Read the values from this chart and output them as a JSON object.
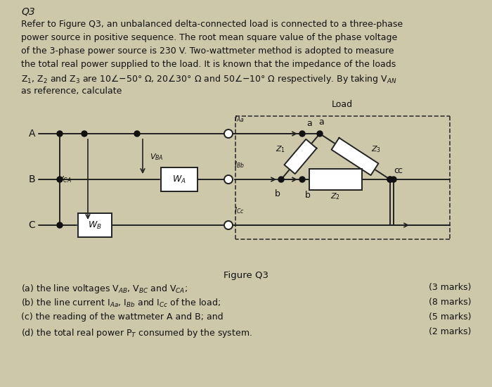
{
  "background_color": "#cdc8aa",
  "title": "Q3",
  "para_lines": [
    "Refer to Figure Q3, an unbalanced delta-connected load is connected to a three-phase",
    "power source in positive sequence. The root mean square value of the phase voltage",
    "of the 3-phase power source is 230 V. Two-wattmeter method is adopted to measure",
    "the total real power supplied to the load. It is known that the impedance of the loads",
    "Z\\u2081, Z\\u2082 and Z\\u2083 are 10\\u2220-50\\u00b0 \\u03a9, 20\\u220030\\u00b0 \\u03a9 and 50\\u2220-10\\u00b0 \\u03a9 respectively. By taking V\\u2090N",
    "as reference, calculate"
  ],
  "figure_label": "Figure Q3",
  "questions": [
    [
      "(a) the line voltages V\\u2090\\u2099, V\\u2099\\u1d04 and V\\u1d04\\u2090;",
      "(3 marks)"
    ],
    [
      "(b) the line current I\\u2090\\u2090, I\\u2099\\u2099 and I\\u1d04\\u1d04 of the load;",
      "(8 marks)"
    ],
    [
      "(c) the reading of the wattmeter A and B; and",
      "(5 marks)"
    ],
    [
      "(d) the total real power P\\u1d1b consumed by the system.",
      "(2 marks)"
    ]
  ]
}
